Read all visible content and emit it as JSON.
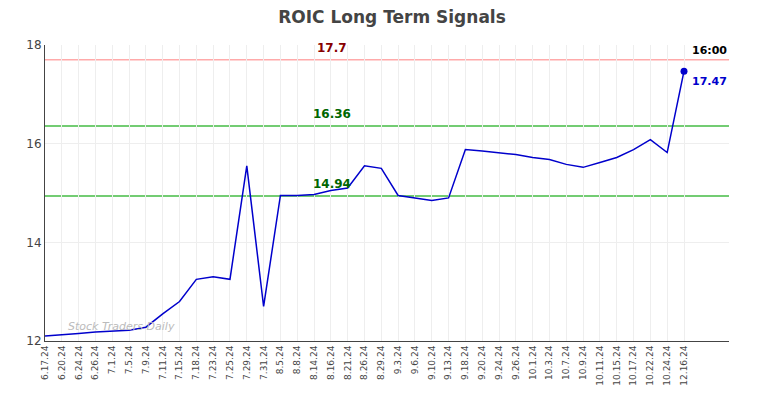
{
  "chart_data": {
    "type": "line",
    "title": "ROIC Long Term Signals",
    "categories": [
      "6.17.24",
      "6.20.24",
      "6.24.24",
      "6.26.24",
      "7.1.24",
      "7.5.24",
      "7.9.24",
      "7.11.24",
      "7.15.24",
      "7.18.24",
      "7.23.24",
      "7.25.24",
      "7.29.24",
      "7.31.24",
      "8.5.24",
      "8.8.24",
      "8.14.24",
      "8.16.24",
      "8.21.24",
      "8.26.24",
      "8.29.24",
      "9.3.24",
      "9.6.24",
      "9.10.24",
      "9.13.24",
      "9.18.24",
      "9.20.24",
      "9.24.24",
      "9.26.24",
      "10.1.24",
      "10.3.24",
      "10.7.24",
      "10.9.24",
      "10.11.24",
      "10.15.24",
      "10.17.24",
      "10.22.24",
      "10.24.24",
      "12.16.24"
    ],
    "values": [
      12.1,
      12.12,
      12.15,
      12.18,
      12.2,
      12.22,
      12.28,
      12.55,
      12.8,
      13.25,
      13.3,
      13.25,
      15.55,
      12.7,
      14.95,
      14.95,
      14.97,
      15.05,
      15.1,
      15.55,
      15.5,
      14.95,
      14.9,
      14.85,
      14.9,
      15.88,
      15.85,
      15.82,
      15.78,
      15.72,
      15.68,
      15.58,
      15.52,
      15.62,
      15.72,
      15.88,
      16.08,
      15.82,
      17.47
    ],
    "color": "#0000CC",
    "marker": "last",
    "hlines": [
      {
        "value": 17.7,
        "label": "17.7",
        "color": "#FFAAAA",
        "label_color": "#880000"
      },
      {
        "value": 16.36,
        "label": "16.36",
        "color": "#44BB44",
        "label_color": "#006600"
      },
      {
        "value": 14.94,
        "label": "14.94",
        "color": "#44BB44",
        "label_color": "#006600"
      }
    ],
    "annotations": [
      {
        "text": "16:00",
        "color": "#000000",
        "anchor": "last"
      },
      {
        "text": "17.47",
        "color": "#0000CC",
        "anchor": "last"
      },
      {
        "text": "Stock Traders Daily",
        "color": "#bbbbbb",
        "anchor": "corner"
      }
    ],
    "ylim": [
      12.0,
      18.0
    ],
    "yticks": [
      12,
      14,
      16,
      18
    ],
    "grid": true
  }
}
